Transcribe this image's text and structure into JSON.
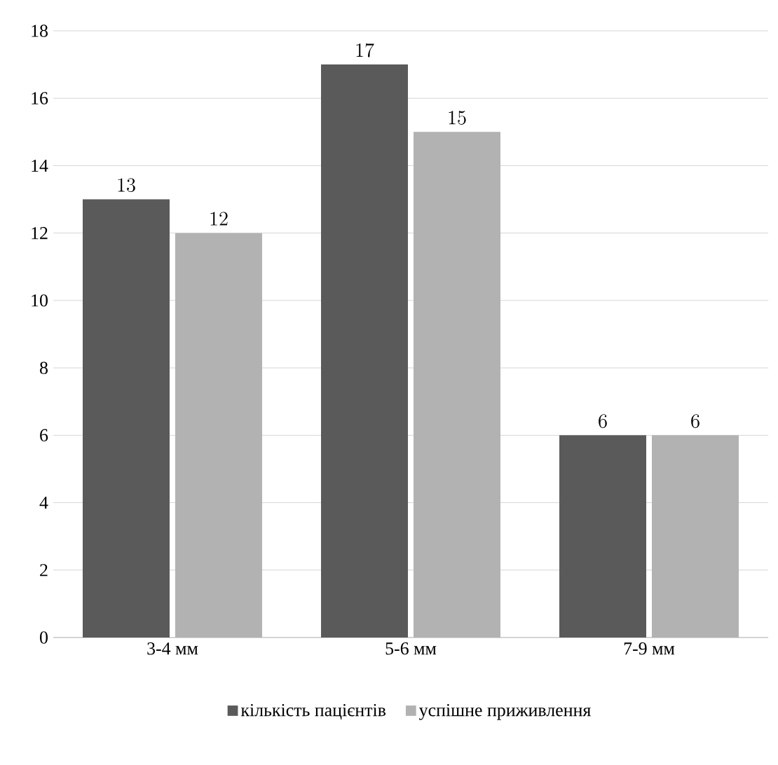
{
  "chart_data": {
    "type": "bar",
    "categories": [
      "3-4 мм",
      "5-6 мм",
      "7-9 мм"
    ],
    "series": [
      {
        "name": "кількість пацієнтів",
        "color": "#5a5a5a",
        "values": [
          13,
          17,
          6
        ]
      },
      {
        "name": "успішне приживлення",
        "color": "#b2b2b2",
        "values": [
          12,
          15,
          6
        ]
      }
    ],
    "ylim": [
      0,
      18
    ],
    "yticks": [
      0,
      2,
      4,
      6,
      8,
      10,
      12,
      14,
      16,
      18
    ],
    "grid": "y",
    "legend": "bottom",
    "data_labels": true
  }
}
